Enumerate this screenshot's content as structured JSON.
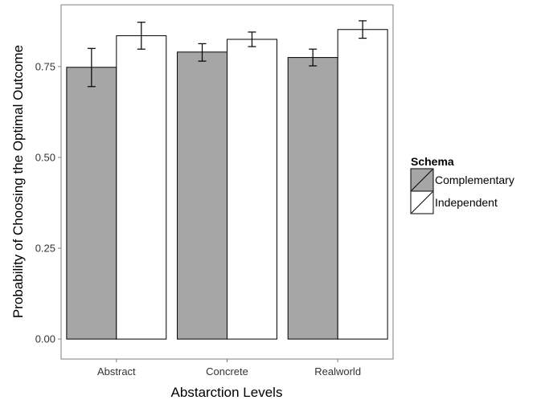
{
  "chart_data": {
    "type": "bar",
    "title": "",
    "xlabel": "Abstarction Levels",
    "ylabel": "Probability of Choosing the Optimal Outcome",
    "categories": [
      "Abstract",
      "Concrete",
      "Realworld"
    ],
    "yticks": [
      0.0,
      0.25,
      0.5,
      0.75
    ],
    "ytick_labels": [
      "0.00",
      "0.25",
      "0.50",
      "0.75"
    ],
    "ylim": [
      -0.055,
      0.92
    ],
    "grid": false,
    "legend": {
      "title": "Schema",
      "placement": "right"
    },
    "series": [
      {
        "name": "Complementary",
        "color": "#a6a6a6",
        "values": [
          0.748,
          0.79,
          0.775
        ],
        "error_low": [
          0.695,
          0.765,
          0.752
        ],
        "error_high": [
          0.8,
          0.813,
          0.798
        ]
      },
      {
        "name": "Independent",
        "color": "#ffffff",
        "values": [
          0.835,
          0.825,
          0.852
        ],
        "error_low": [
          0.798,
          0.805,
          0.828
        ],
        "error_high": [
          0.872,
          0.845,
          0.876
        ]
      }
    ]
  }
}
